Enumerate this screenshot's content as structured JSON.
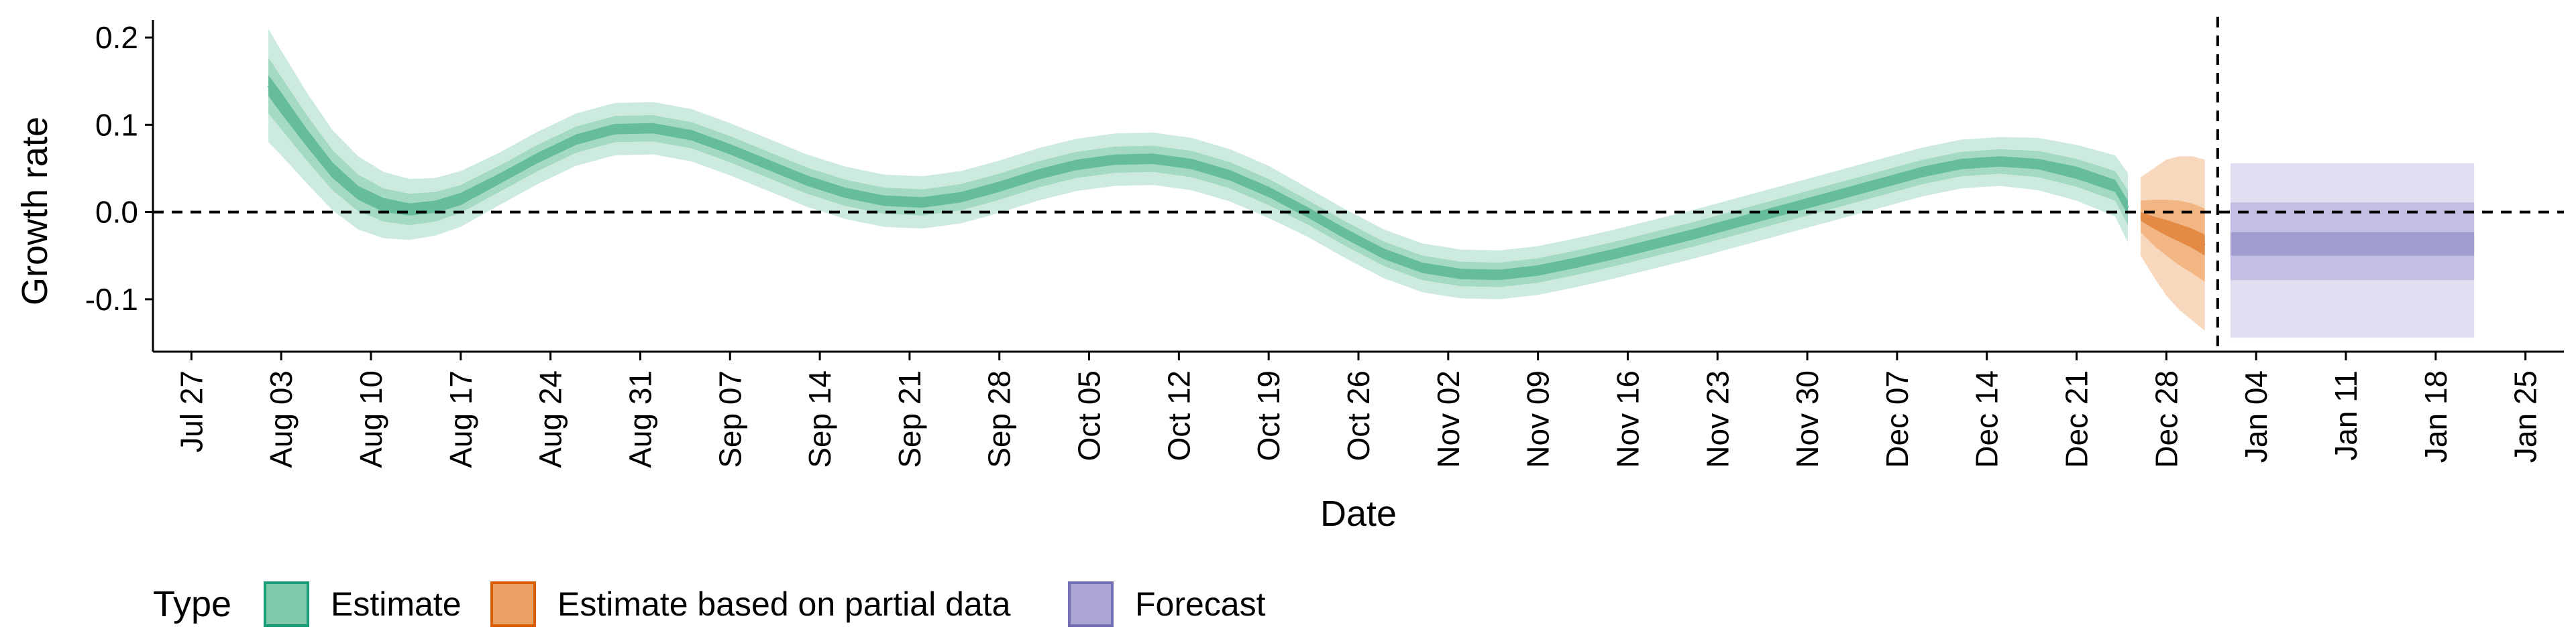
{
  "chart_data": {
    "type": "area",
    "xlabel": "Date",
    "ylabel": "Growth rate",
    "ylim": [
      -0.16,
      0.22
    ],
    "y_ticks": [
      0.2,
      0.1,
      0.0,
      -0.1
    ],
    "y_tick_labels": [
      "0.2",
      "0.1",
      "0.0",
      "-0.1"
    ],
    "x_tick_labels": [
      "Jul 27",
      "Aug 03",
      "Aug 10",
      "Aug 17",
      "Aug 24",
      "Aug 31",
      "Sep 07",
      "Sep 14",
      "Sep 21",
      "Sep 28",
      "Oct 05",
      "Oct 12",
      "Oct 19",
      "Oct 26",
      "Nov 02",
      "Nov 09",
      "Nov 16",
      "Nov 23",
      "Nov 30",
      "Dec 07",
      "Dec 14",
      "Dec 21",
      "Dec 28",
      "Jan 04",
      "Jan 11",
      "Jan 18",
      "Jan 25"
    ],
    "x_ticks": [
      "2020-07-27",
      "2020-08-03",
      "2020-08-10",
      "2020-08-17",
      "2020-08-24",
      "2020-08-31",
      "2020-09-07",
      "2020-09-14",
      "2020-09-21",
      "2020-09-28",
      "2020-10-05",
      "2020-10-12",
      "2020-10-19",
      "2020-10-26",
      "2020-11-02",
      "2020-11-09",
      "2020-11-16",
      "2020-11-23",
      "2020-11-30",
      "2020-12-07",
      "2020-12-14",
      "2020-12-21",
      "2020-12-28",
      "2021-01-04",
      "2021-01-11",
      "2021-01-18",
      "2021-01-25"
    ],
    "xlim": [
      "2020-07-24",
      "2021-01-28"
    ],
    "reference_lines": {
      "horizontal_y": 0.0,
      "vertical_date": "2021-01-01"
    },
    "grid": false,
    "legend": {
      "title": "Type",
      "placement": "bottom",
      "entries": [
        {
          "label": "Estimate",
          "fill": "#7fc8ac",
          "stroke": "#1b9e77"
        },
        {
          "label": "Estimate based on partial data",
          "fill": "#eba064",
          "stroke": "#d95f02"
        },
        {
          "label": "Forecast",
          "fill": "#aaa5d4",
          "stroke": "#7570b3"
        }
      ]
    },
    "series": [
      {
        "name": "Estimate",
        "color": "#1b9e77",
        "x": [
          "2020-08-02",
          "2020-08-03",
          "2020-08-05",
          "2020-08-07",
          "2020-08-09",
          "2020-08-11",
          "2020-08-13",
          "2020-08-15",
          "2020-08-17",
          "2020-08-20",
          "2020-08-23",
          "2020-08-26",
          "2020-08-29",
          "2020-09-01",
          "2020-09-04",
          "2020-09-07",
          "2020-09-10",
          "2020-09-13",
          "2020-09-16",
          "2020-09-19",
          "2020-09-22",
          "2020-09-25",
          "2020-09-28",
          "2020-10-01",
          "2020-10-04",
          "2020-10-07",
          "2020-10-10",
          "2020-10-13",
          "2020-10-16",
          "2020-10-19",
          "2020-10-22",
          "2020-10-25",
          "2020-10-28",
          "2020-10-31",
          "2020-11-03",
          "2020-11-06",
          "2020-11-09",
          "2020-11-12",
          "2020-11-15",
          "2020-11-18",
          "2020-11-21",
          "2020-11-24",
          "2020-11-27",
          "2020-11-30",
          "2020-12-03",
          "2020-12-06",
          "2020-12-09",
          "2020-12-12",
          "2020-12-15",
          "2020-12-18",
          "2020-12-21",
          "2020-12-24",
          "2020-12-25"
        ],
        "median": [
          0.145,
          0.125,
          0.085,
          0.048,
          0.022,
          0.008,
          0.003,
          0.006,
          0.015,
          0.038,
          0.062,
          0.083,
          0.095,
          0.096,
          0.088,
          0.072,
          0.054,
          0.036,
          0.022,
          0.013,
          0.011,
          0.017,
          0.029,
          0.043,
          0.054,
          0.06,
          0.061,
          0.055,
          0.042,
          0.023,
          0.0,
          -0.025,
          -0.048,
          -0.064,
          -0.071,
          -0.072,
          -0.067,
          -0.058,
          -0.048,
          -0.037,
          -0.026,
          -0.014,
          -0.002,
          0.01,
          0.022,
          0.034,
          0.046,
          0.055,
          0.058,
          0.055,
          0.045,
          0.03,
          0.005
        ],
        "ci_outer": [
          0.065,
          0.06,
          0.052,
          0.046,
          0.042,
          0.038,
          0.035,
          0.033,
          0.032,
          0.03,
          0.03,
          0.03,
          0.03,
          0.03,
          0.03,
          0.03,
          0.03,
          0.03,
          0.03,
          0.03,
          0.03,
          0.03,
          0.03,
          0.03,
          0.03,
          0.03,
          0.03,
          0.03,
          0.03,
          0.03,
          0.028,
          0.028,
          0.028,
          0.028,
          0.028,
          0.028,
          0.028,
          0.028,
          0.028,
          0.028,
          0.028,
          0.028,
          0.028,
          0.028,
          0.028,
          0.028,
          0.028,
          0.028,
          0.028,
          0.03,
          0.032,
          0.035,
          0.04
        ],
        "ci_mid": [
          0.032,
          0.03,
          0.026,
          0.023,
          0.021,
          0.019,
          0.018,
          0.017,
          0.016,
          0.015,
          0.015,
          0.015,
          0.015,
          0.015,
          0.015,
          0.015,
          0.015,
          0.015,
          0.015,
          0.015,
          0.015,
          0.015,
          0.015,
          0.015,
          0.015,
          0.015,
          0.015,
          0.015,
          0.015,
          0.015,
          0.014,
          0.014,
          0.014,
          0.014,
          0.014,
          0.014,
          0.014,
          0.014,
          0.014,
          0.014,
          0.014,
          0.014,
          0.014,
          0.014,
          0.014,
          0.014,
          0.014,
          0.014,
          0.014,
          0.015,
          0.016,
          0.017,
          0.02
        ],
        "ci_inner": [
          0.012,
          0.012,
          0.01,
          0.009,
          0.008,
          0.008,
          0.007,
          0.007,
          0.007,
          0.006,
          0.006,
          0.006,
          0.006,
          0.006,
          0.006,
          0.006,
          0.006,
          0.006,
          0.006,
          0.006,
          0.006,
          0.006,
          0.006,
          0.006,
          0.006,
          0.006,
          0.006,
          0.006,
          0.006,
          0.006,
          0.006,
          0.006,
          0.006,
          0.006,
          0.006,
          0.006,
          0.006,
          0.006,
          0.006,
          0.006,
          0.006,
          0.006,
          0.006,
          0.006,
          0.006,
          0.006,
          0.006,
          0.006,
          0.006,
          0.006,
          0.007,
          0.007,
          0.008
        ]
      },
      {
        "name": "Estimate based on partial data",
        "color": "#d95f02",
        "x": [
          "2020-12-26",
          "2020-12-27",
          "2020-12-28",
          "2020-12-29",
          "2020-12-30",
          "2020-12-31"
        ],
        "median": [
          -0.005,
          -0.012,
          -0.018,
          -0.024,
          -0.03,
          -0.038
        ],
        "ci_outer": [
          0.045,
          0.062,
          0.078,
          0.088,
          0.094,
          0.098
        ],
        "ci_mid": [
          0.018,
          0.026,
          0.032,
          0.037,
          0.04,
          0.042
        ],
        "ci_inner": [
          0.005,
          0.007,
          0.009,
          0.01,
          0.011,
          0.012
        ]
      },
      {
        "name": "Forecast",
        "color": "#7570b3",
        "x": [
          "2021-01-02",
          "2021-01-21"
        ],
        "median": [
          -0.037,
          -0.037
        ],
        "outer": [
          -0.144,
          0.056
        ],
        "mid": [
          -0.078,
          0.011
        ],
        "inner": [
          -0.05,
          -0.023
        ]
      }
    ]
  }
}
